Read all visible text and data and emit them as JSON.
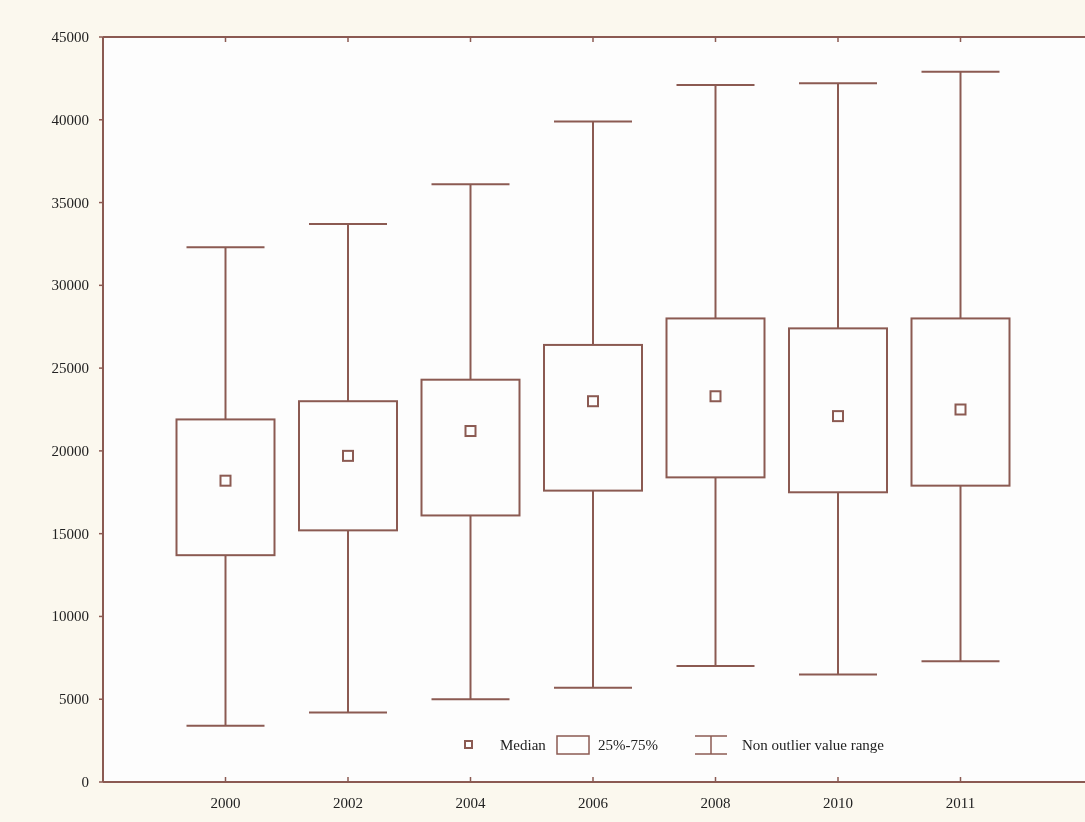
{
  "chart_data": {
    "type": "box",
    "categories": [
      "2000",
      "2002",
      "2004",
      "2006",
      "2008",
      "2010",
      "2011"
    ],
    "boxes": [
      {
        "low": 3400,
        "q1": 13700,
        "median": 18200,
        "q3": 21900,
        "high": 32300
      },
      {
        "low": 4200,
        "q1": 15200,
        "median": 19700,
        "q3": 23000,
        "high": 33700
      },
      {
        "low": 5000,
        "q1": 16100,
        "median": 21200,
        "q3": 24300,
        "high": 36100
      },
      {
        "low": 5700,
        "q1": 17600,
        "median": 23000,
        "q3": 26400,
        "high": 39900
      },
      {
        "low": 7000,
        "q1": 18400,
        "median": 23300,
        "q3": 28000,
        "high": 42100
      },
      {
        "low": 6500,
        "q1": 17500,
        "median": 22100,
        "q3": 27400,
        "high": 42200
      },
      {
        "low": 7300,
        "q1": 17900,
        "median": 22500,
        "q3": 28000,
        "high": 42900
      }
    ],
    "color": "#8b5a52",
    "marker": "square",
    "ylim": [
      0,
      45000
    ],
    "yticks": [
      0,
      5000,
      10000,
      15000,
      20000,
      25000,
      30000,
      35000,
      40000,
      45000
    ],
    "annotations": [
      "Median",
      "25%-75%",
      "Non outlier value range"
    ]
  }
}
